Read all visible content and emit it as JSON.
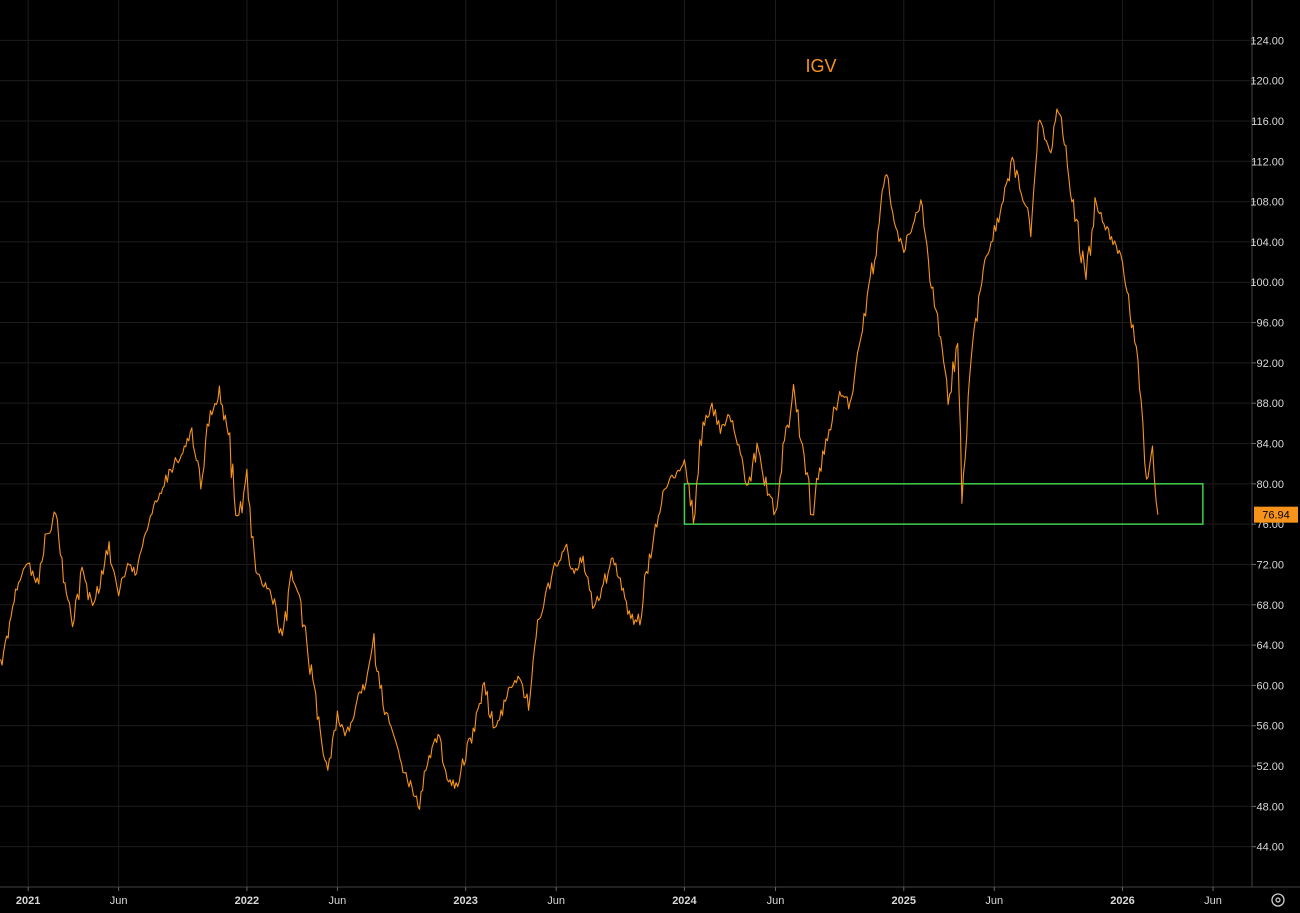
{
  "colors": {
    "background": "#000000",
    "grid": "#1c1c1c",
    "series": "#f7931a",
    "zone": "#3fcf4a",
    "axis_text": "#d8d8d8"
  },
  "axis_icon": "gear-settings-icon",
  "chart_data": {
    "type": "line",
    "title": "IGV",
    "xlabel": "",
    "ylabel": "",
    "grid": true,
    "y_axis_position": "right",
    "xlim": [
      "2020-11-15",
      "2026-08-05"
    ],
    "ylim": [
      40,
      128
    ],
    "y_ticks": [
      "44.00",
      "48.00",
      "52.00",
      "56.00",
      "60.00",
      "64.00",
      "68.00",
      "72.00",
      "76.00",
      "80.00",
      "84.00",
      "88.00",
      "92.00",
      "96.00",
      "100.00",
      "104.00",
      "108.00",
      "112.00",
      "116.00",
      "120.00",
      "124.00"
    ],
    "x_ticks": [
      {
        "date": "2021-01-01",
        "label": "2021",
        "year": true
      },
      {
        "date": "2021-06-01",
        "label": "Jun",
        "year": false
      },
      {
        "date": "2022-01-01",
        "label": "2022",
        "year": true
      },
      {
        "date": "2022-06-01",
        "label": "Jun",
        "year": false
      },
      {
        "date": "2023-01-01",
        "label": "2023",
        "year": true
      },
      {
        "date": "2023-06-01",
        "label": "Jun",
        "year": false
      },
      {
        "date": "2024-01-01",
        "label": "2024",
        "year": true
      },
      {
        "date": "2024-06-01",
        "label": "Jun",
        "year": false
      },
      {
        "date": "2025-01-01",
        "label": "2025",
        "year": true
      },
      {
        "date": "2025-06-01",
        "label": "Jun",
        "year": false
      },
      {
        "date": "2026-01-01",
        "label": "2026",
        "year": true
      },
      {
        "date": "2026-06-01",
        "label": "Jun",
        "year": false
      }
    ],
    "last_price": "76.94",
    "last_value": 76.94,
    "zone": {
      "x_start": "2024-01-01",
      "x_end": "2026-05-15",
      "y_low": 76,
      "y_high": 80
    },
    "series": [
      {
        "points": [
          [
            "2020-11-16",
            62
          ],
          [
            "2020-12-01",
            66
          ],
          [
            "2020-12-16",
            70
          ],
          [
            "2021-01-01",
            72
          ],
          [
            "2021-01-16",
            70
          ],
          [
            "2021-02-01",
            75
          ],
          [
            "2021-02-16",
            77
          ],
          [
            "2021-03-01",
            70
          ],
          [
            "2021-03-16",
            66
          ],
          [
            "2021-04-01",
            71
          ],
          [
            "2021-04-16",
            68
          ],
          [
            "2021-05-01",
            70
          ],
          [
            "2021-05-16",
            74
          ],
          [
            "2021-06-01",
            69
          ],
          [
            "2021-06-16",
            72
          ],
          [
            "2021-07-01",
            71
          ],
          [
            "2021-07-16",
            75
          ],
          [
            "2021-08-01",
            78
          ],
          [
            "2021-08-16",
            80
          ],
          [
            "2021-09-01",
            82
          ],
          [
            "2021-09-16",
            83
          ],
          [
            "2021-10-01",
            85
          ],
          [
            "2021-10-16",
            80
          ],
          [
            "2021-11-01",
            87
          ],
          [
            "2021-11-16",
            89
          ],
          [
            "2021-12-01",
            85
          ],
          [
            "2021-12-16",
            76
          ],
          [
            "2022-01-01",
            80
          ],
          [
            "2022-01-16",
            71
          ],
          [
            "2022-02-01",
            70
          ],
          [
            "2022-02-16",
            68
          ],
          [
            "2022-03-01",
            64
          ],
          [
            "2022-03-16",
            71
          ],
          [
            "2022-04-01",
            68
          ],
          [
            "2022-04-16",
            62
          ],
          [
            "2022-05-01",
            56
          ],
          [
            "2022-05-16",
            52
          ],
          [
            "2022-06-01",
            57
          ],
          [
            "2022-06-16",
            55
          ],
          [
            "2022-07-01",
            58
          ],
          [
            "2022-07-16",
            60
          ],
          [
            "2022-08-01",
            64
          ],
          [
            "2022-08-16",
            58
          ],
          [
            "2022-09-01",
            55
          ],
          [
            "2022-09-16",
            52
          ],
          [
            "2022-10-01",
            50
          ],
          [
            "2022-10-16",
            48
          ],
          [
            "2022-11-01",
            53
          ],
          [
            "2022-11-16",
            55
          ],
          [
            "2022-12-01",
            51
          ],
          [
            "2022-12-16",
            50
          ],
          [
            "2023-01-01",
            53
          ],
          [
            "2023-01-16",
            56
          ],
          [
            "2023-02-01",
            60
          ],
          [
            "2023-02-16",
            56
          ],
          [
            "2023-03-01",
            57
          ],
          [
            "2023-03-16",
            60
          ],
          [
            "2023-04-01",
            61
          ],
          [
            "2023-04-16",
            58
          ],
          [
            "2023-05-01",
            66
          ],
          [
            "2023-05-16",
            69
          ],
          [
            "2023-06-01",
            72
          ],
          [
            "2023-06-16",
            74
          ],
          [
            "2023-07-01",
            71
          ],
          [
            "2023-07-16",
            73
          ],
          [
            "2023-08-01",
            68
          ],
          [
            "2023-08-16",
            69
          ],
          [
            "2023-09-01",
            73
          ],
          [
            "2023-09-16",
            70
          ],
          [
            "2023-10-01",
            67
          ],
          [
            "2023-10-16",
            66
          ],
          [
            "2023-11-01",
            72
          ],
          [
            "2023-11-16",
            76
          ],
          [
            "2023-12-01",
            80
          ],
          [
            "2024-01-01",
            82
          ],
          [
            "2024-01-16",
            77
          ],
          [
            "2024-02-01",
            86
          ],
          [
            "2024-02-16",
            88
          ],
          [
            "2024-03-01",
            85
          ],
          [
            "2024-03-16",
            87
          ],
          [
            "2024-04-01",
            84
          ],
          [
            "2024-04-16",
            79
          ],
          [
            "2024-05-01",
            84
          ],
          [
            "2024-05-16",
            80
          ],
          [
            "2024-06-01",
            77
          ],
          [
            "2024-06-16",
            84
          ],
          [
            "2024-07-01",
            89
          ],
          [
            "2024-07-16",
            84
          ],
          [
            "2024-08-01",
            77
          ],
          [
            "2024-08-16",
            82
          ],
          [
            "2024-09-01",
            86
          ],
          [
            "2024-09-16",
            89
          ],
          [
            "2024-10-01",
            88
          ],
          [
            "2024-10-16",
            92
          ],
          [
            "2024-11-01",
            98
          ],
          [
            "2024-11-16",
            104
          ],
          [
            "2024-12-01",
            111
          ],
          [
            "2024-12-16",
            106
          ],
          [
            "2025-01-01",
            103
          ],
          [
            "2025-01-16",
            106
          ],
          [
            "2025-02-01",
            108
          ],
          [
            "2025-02-16",
            100
          ],
          [
            "2025-03-01",
            95
          ],
          [
            "2025-03-16",
            88
          ],
          [
            "2025-04-01",
            94
          ],
          [
            "2025-04-08",
            79
          ],
          [
            "2025-04-16",
            86
          ],
          [
            "2025-05-01",
            96
          ],
          [
            "2025-05-16",
            102
          ],
          [
            "2025-06-01",
            105
          ],
          [
            "2025-06-16",
            108
          ],
          [
            "2025-07-01",
            112
          ],
          [
            "2025-07-16",
            109
          ],
          [
            "2025-08-01",
            106
          ],
          [
            "2025-08-16",
            116
          ],
          [
            "2025-09-01",
            113
          ],
          [
            "2025-09-16",
            117
          ],
          [
            "2025-10-01",
            112
          ],
          [
            "2025-10-16",
            106
          ],
          [
            "2025-11-01",
            100
          ],
          [
            "2025-11-16",
            108
          ],
          [
            "2025-12-01",
            106
          ],
          [
            "2025-12-16",
            104
          ],
          [
            "2026-01-01",
            102
          ],
          [
            "2026-01-16",
            97
          ],
          [
            "2026-02-01",
            88
          ],
          [
            "2026-02-10",
            80
          ],
          [
            "2026-02-20",
            83
          ],
          [
            "2026-03-01",
            76.94
          ]
        ]
      }
    ]
  }
}
